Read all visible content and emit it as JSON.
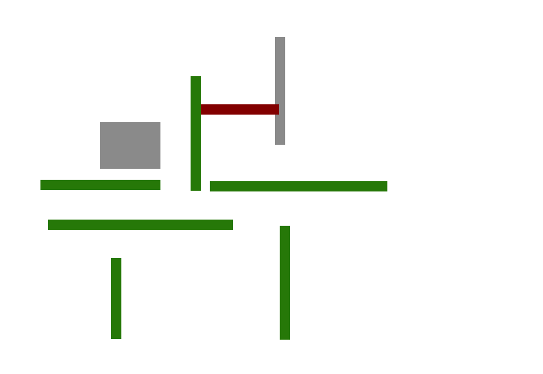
{
  "colors": {
    "background": "#ffffff",
    "green": "#267808",
    "gray": "#8a8a8a",
    "red": "#820000"
  },
  "blocks": [
    {
      "id": "gray-block-square",
      "color": "gray"
    },
    {
      "id": "gray-vertical-post",
      "color": "gray"
    },
    {
      "id": "red-horizontal-bar",
      "color": "red"
    },
    {
      "id": "green-vertical-bar-a",
      "color": "green"
    },
    {
      "id": "green-horizontal-bar-a",
      "color": "green"
    },
    {
      "id": "green-horizontal-bar-b",
      "color": "green"
    },
    {
      "id": "green-horizontal-bar-c",
      "color": "green"
    },
    {
      "id": "green-vertical-bar-b",
      "color": "green"
    },
    {
      "id": "green-vertical-bar-c",
      "color": "green"
    }
  ]
}
